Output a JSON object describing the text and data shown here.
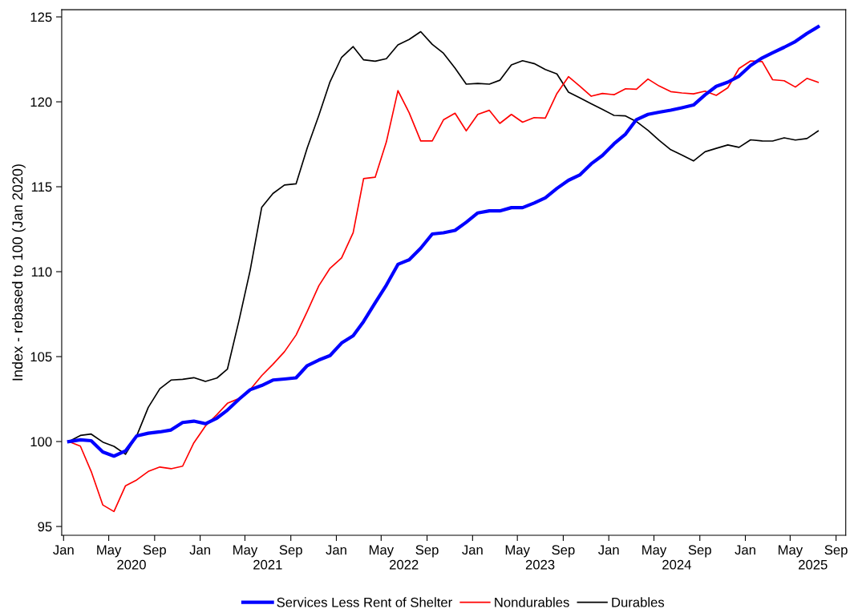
{
  "chart_data": {
    "type": "line",
    "ylabel": "Index - rebased to 100 (Jan 2020)",
    "x": [
      "2020-01-15",
      "2020-02-15",
      "2020-03-15",
      "2020-04-15",
      "2020-05-15",
      "2020-06-15",
      "2020-07-15",
      "2020-08-15",
      "2020-09-15",
      "2020-10-15",
      "2020-11-15",
      "2020-12-15",
      "2021-01-15",
      "2021-02-15",
      "2021-03-15",
      "2021-04-15",
      "2021-05-15",
      "2021-06-15",
      "2021-07-15",
      "2021-08-15",
      "2021-09-15",
      "2021-10-15",
      "2021-11-15",
      "2021-12-15",
      "2022-01-15",
      "2022-02-15",
      "2022-03-15",
      "2022-04-15",
      "2022-05-15",
      "2022-06-15",
      "2022-07-15",
      "2022-08-15",
      "2022-09-15",
      "2022-10-15",
      "2022-11-15",
      "2022-12-15",
      "2023-01-15",
      "2023-02-15",
      "2023-03-15",
      "2023-04-15",
      "2023-05-15",
      "2023-06-15",
      "2023-07-15",
      "2023-08-15",
      "2023-09-15",
      "2023-10-15",
      "2023-11-15",
      "2023-12-15",
      "2024-01-15",
      "2024-02-15",
      "2024-03-15",
      "2024-04-15",
      "2024-05-15",
      "2024-06-15",
      "2024-07-15",
      "2024-08-15",
      "2024-09-15",
      "2024-10-15",
      "2024-11-15",
      "2024-12-15",
      "2025-01-15",
      "2025-02-15",
      "2025-03-15",
      "2025-04-15",
      "2025-05-15",
      "2025-06-15",
      "2025-07-15"
    ],
    "series": [
      {
        "name": "Services Less Rent of Shelter",
        "color": "#0000ff",
        "values": [
          100.0,
          100.1,
          100.05,
          99.39,
          99.14,
          99.45,
          100.33,
          100.49,
          100.57,
          100.68,
          101.12,
          101.2,
          101.05,
          101.38,
          101.85,
          102.49,
          103.05,
          103.3,
          103.62,
          103.68,
          103.75,
          104.47,
          104.8,
          105.06,
          105.8,
          106.23,
          107.07,
          108.17,
          109.21,
          110.43,
          110.7,
          111.38,
          112.22,
          112.29,
          112.43,
          112.91,
          113.46,
          113.58,
          113.58,
          113.77,
          113.77,
          114.04,
          114.35,
          114.9,
          115.38,
          115.69,
          116.35,
          116.84,
          117.53,
          118.1,
          118.95,
          119.26,
          119.39,
          119.51,
          119.65,
          119.81,
          120.41,
          120.91,
          121.16,
          121.51,
          122.14,
          122.58,
          122.89,
          123.21,
          123.55,
          124.02,
          124.42
        ]
      },
      {
        "name": "Nondurables",
        "color": "#ff0000",
        "values": [
          100.0,
          99.73,
          98.24,
          96.27,
          95.88,
          97.4,
          97.74,
          98.24,
          98.5,
          98.4,
          98.55,
          99.92,
          100.91,
          101.59,
          102.25,
          102.53,
          103.06,
          103.88,
          104.55,
          105.29,
          106.27,
          107.66,
          109.17,
          110.2,
          110.81,
          112.3,
          115.48,
          115.56,
          117.64,
          120.66,
          119.36,
          117.7,
          117.7,
          118.94,
          119.33,
          118.29,
          119.26,
          119.5,
          118.73,
          119.26,
          118.8,
          119.07,
          119.04,
          120.49,
          121.48,
          120.93,
          120.33,
          120.49,
          120.42,
          120.77,
          120.74,
          121.34,
          120.93,
          120.6,
          120.52,
          120.47,
          120.63,
          120.38,
          120.83,
          121.96,
          122.41,
          122.37,
          121.3,
          121.24,
          120.87,
          121.38,
          121.15
        ]
      },
      {
        "name": "Durables",
        "color": "#000000",
        "values": [
          100.0,
          100.36,
          100.44,
          99.97,
          99.72,
          99.25,
          100.34,
          102.01,
          103.11,
          103.62,
          103.66,
          103.76,
          103.54,
          103.74,
          104.26,
          107.12,
          110.08,
          113.79,
          114.6,
          115.1,
          115.17,
          117.29,
          119.2,
          121.18,
          122.62,
          123.25,
          122.47,
          122.39,
          122.54,
          123.35,
          123.67,
          124.13,
          123.38,
          122.86,
          121.98,
          121.04,
          121.08,
          121.04,
          121.27,
          122.17,
          122.42,
          122.25,
          121.9,
          121.64,
          120.57,
          120.24,
          119.89,
          119.55,
          119.2,
          119.17,
          118.84,
          118.32,
          117.73,
          117.18,
          116.87,
          116.52,
          117.06,
          117.26,
          117.46,
          117.32,
          117.76,
          117.7,
          117.69,
          117.88,
          117.75,
          117.84,
          118.28
        ]
      }
    ],
    "xlim": [
      "2019-12-27",
      "2025-09-27"
    ],
    "xticks": [
      {
        "value": "2020-01-01",
        "label": "Jan"
      },
      {
        "value": "2020-05-01",
        "label": "May"
      },
      {
        "value": "2020-09-01",
        "label": "Sep"
      },
      {
        "value": "2021-01-01",
        "label": "Jan"
      },
      {
        "value": "2021-05-01",
        "label": "May"
      },
      {
        "value": "2021-09-01",
        "label": "Sep"
      },
      {
        "value": "2022-01-01",
        "label": "Jan"
      },
      {
        "value": "2022-05-01",
        "label": "May"
      },
      {
        "value": "2022-09-01",
        "label": "Sep"
      },
      {
        "value": "2023-01-01",
        "label": "Jan"
      },
      {
        "value": "2023-05-01",
        "label": "May"
      },
      {
        "value": "2023-09-01",
        "label": "Sep"
      },
      {
        "value": "2024-01-01",
        "label": "Jan"
      },
      {
        "value": "2024-05-01",
        "label": "May"
      },
      {
        "value": "2024-09-01",
        "label": "Sep"
      },
      {
        "value": "2025-01-01",
        "label": "Jan"
      },
      {
        "value": "2025-05-01",
        "label": "May"
      },
      {
        "value": "2025-09-01",
        "label": "Sep"
      }
    ],
    "x2lim": [
      "2019-12-27",
      "2025-09-27"
    ],
    "x2ticks": [
      {
        "value": "2020-07-01",
        "label": "2020"
      },
      {
        "value": "2021-07-01",
        "label": "2021"
      },
      {
        "value": "2022-07-01",
        "label": "2022"
      },
      {
        "value": "2023-07-01",
        "label": "2023"
      },
      {
        "value": "2024-07-01",
        "label": "2024"
      },
      {
        "value": "2025-07-01",
        "label": "2025"
      }
    ],
    "ylim": [
      94.48,
      125.42
    ],
    "yticks": [
      95,
      100,
      105,
      110,
      115,
      120,
      125
    ],
    "legend": "bottom",
    "grid": false,
    "marker": "none",
    "line_style": "solid"
  }
}
